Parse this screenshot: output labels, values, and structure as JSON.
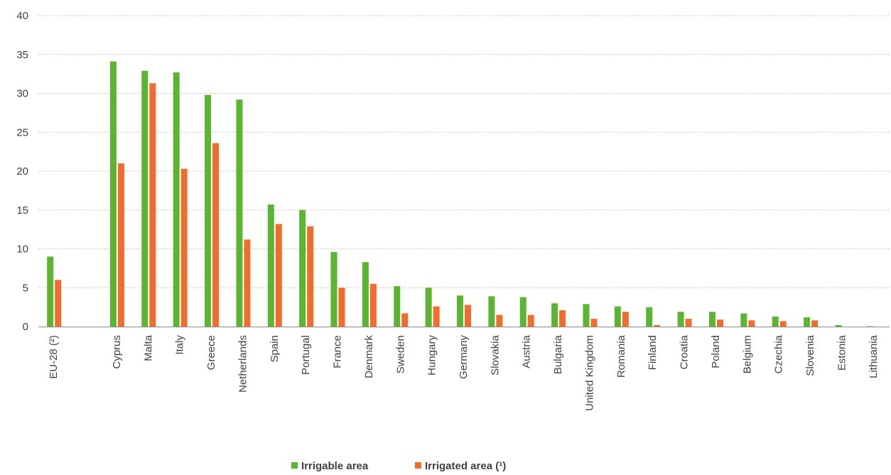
{
  "chart_data": {
    "type": "bar",
    "categories": [
      "EU-28 (²)",
      "",
      "Cyprus",
      "Malta",
      "Italy",
      "Greece",
      "Netherlands",
      "Spain",
      "Portugal",
      "France",
      "Denmark",
      "Sweden",
      "Hungary",
      "Germany",
      "Slovakia",
      "Austria",
      "Bulgaria",
      "United Kingdom",
      "Romania",
      "Finland",
      "Croatia",
      "Poland",
      "Belgium",
      "Czechia",
      "Slovenia",
      "Estonia",
      "Lithuania"
    ],
    "series": [
      {
        "name": "Irrigable area",
        "color": "#5cb531",
        "values": [
          9.0,
          null,
          34.1,
          32.9,
          32.7,
          29.8,
          29.2,
          15.7,
          15.0,
          9.6,
          8.3,
          5.2,
          5.0,
          4.0,
          3.9,
          3.8,
          3.0,
          2.9,
          2.6,
          2.5,
          1.9,
          1.9,
          1.7,
          1.3,
          1.2,
          0.2,
          0.05
        ]
      },
      {
        "name": "Irrigated area (¹)",
        "color": "#f26c2d",
        "values": [
          6.0,
          null,
          21.0,
          31.3,
          20.3,
          23.6,
          11.2,
          13.2,
          12.9,
          5.0,
          5.5,
          1.7,
          2.6,
          2.8,
          1.5,
          1.5,
          2.1,
          1.0,
          1.9,
          0.2,
          1.0,
          0.9,
          0.8,
          0.7,
          0.8,
          0.0,
          0.0
        ]
      }
    ],
    "yticks": [
      0,
      5,
      10,
      15,
      20,
      25,
      30,
      35,
      40
    ],
    "ylim": [
      0,
      40
    ],
    "grid": true,
    "legend_position": "bottom-center"
  }
}
